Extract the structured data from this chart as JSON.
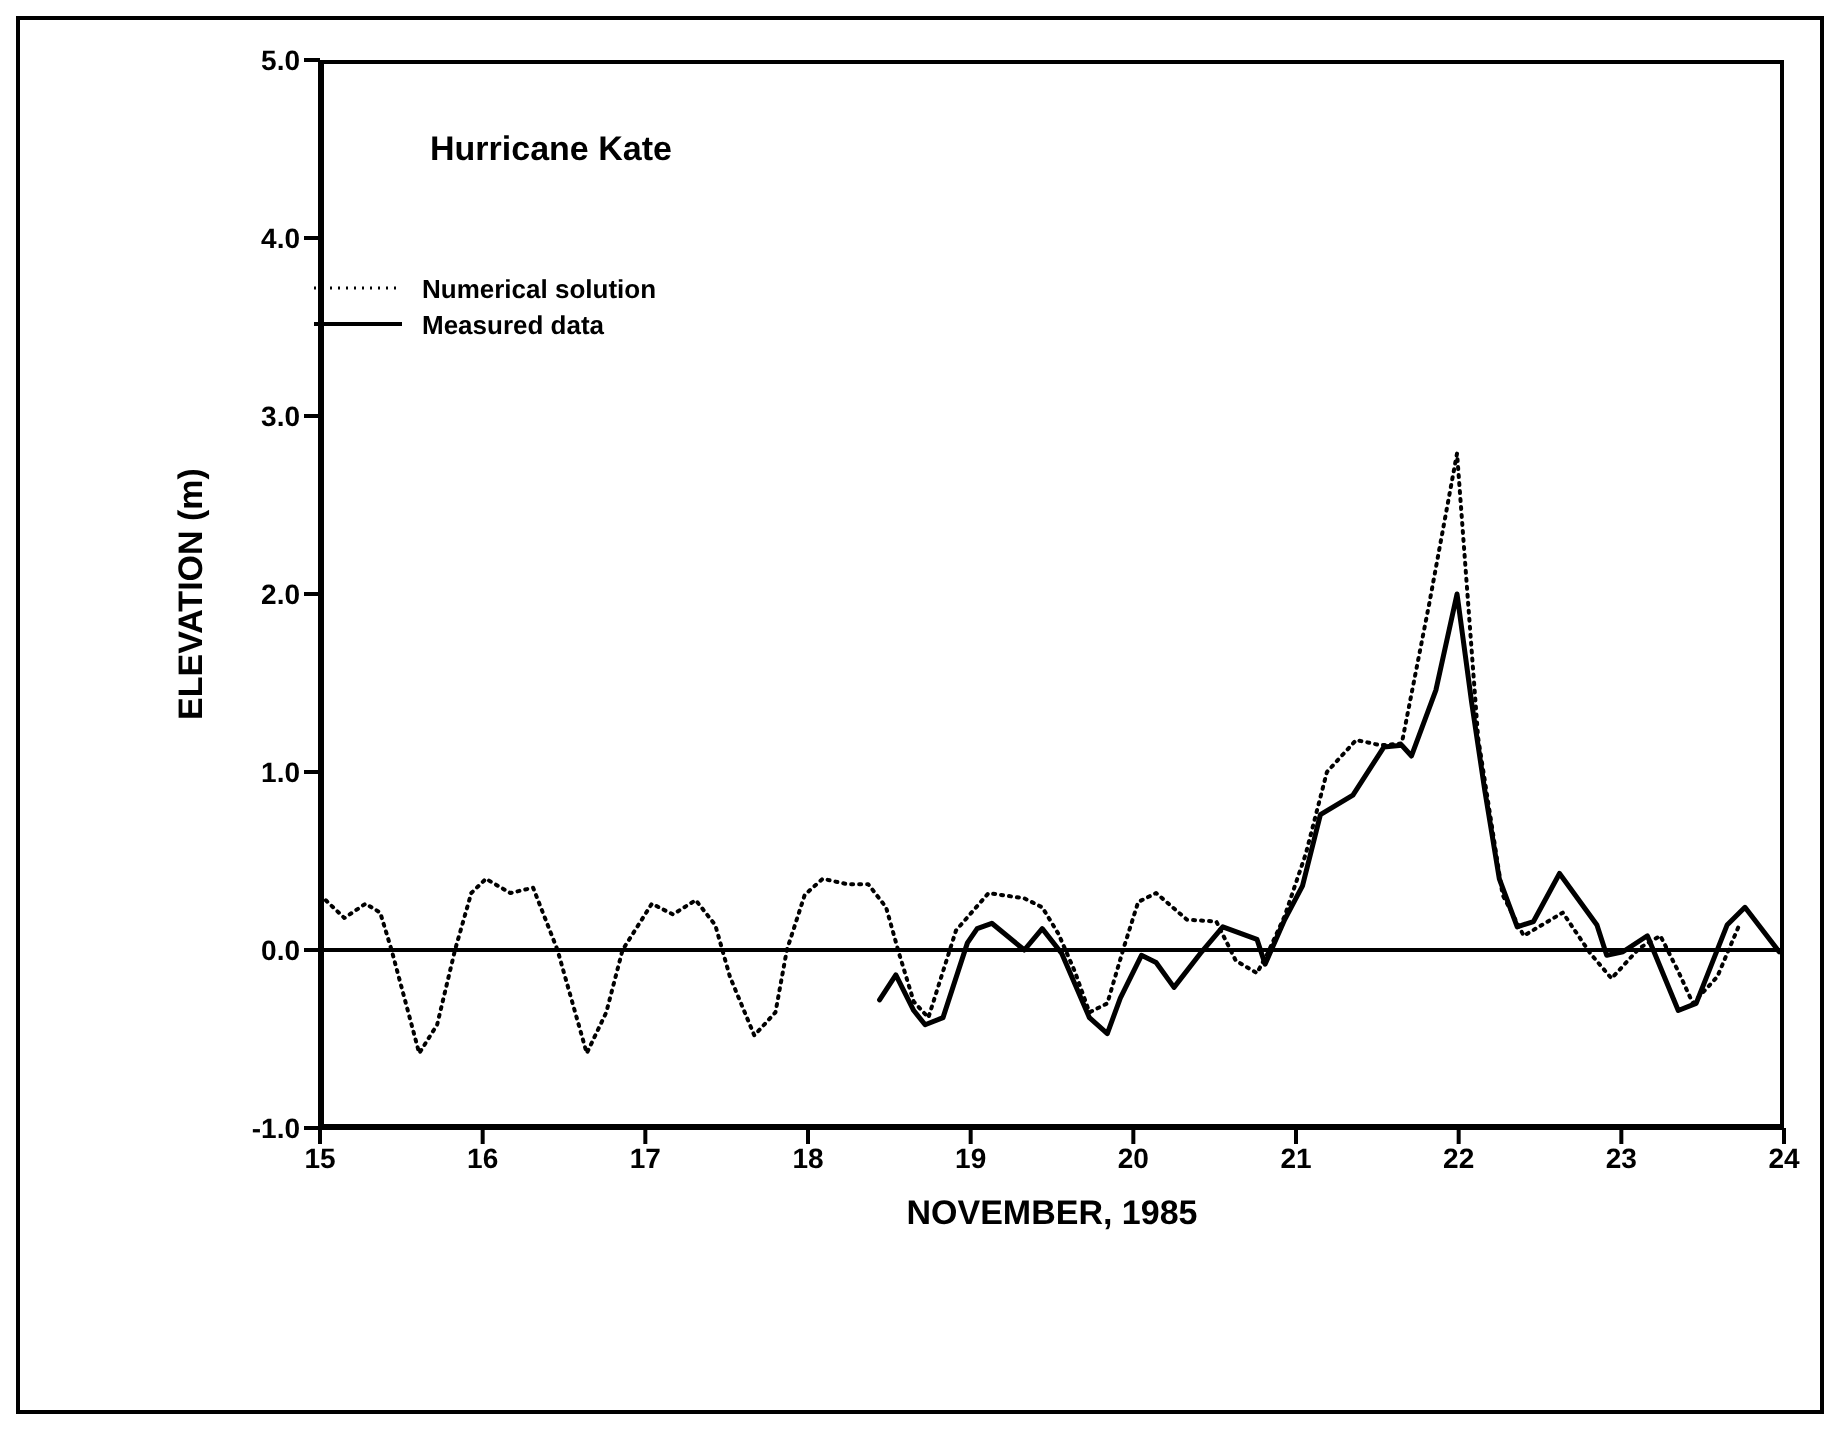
{
  "chart_data": {
    "type": "line",
    "title": "Hurricane Kate",
    "xlabel": "NOVEMBER, 1985",
    "ylabel": "ELEVATION (m)",
    "xlim": [
      15,
      24
    ],
    "xticks": [
      15,
      16,
      17,
      18,
      19,
      20,
      21,
      22,
      23,
      24
    ],
    "ylim": [
      -1,
      5
    ],
    "yticks": [
      {
        "value": -1,
        "label": "-1.0"
      },
      {
        "value": 0,
        "label": "0.0"
      },
      {
        "value": 1,
        "label": "1.0"
      },
      {
        "value": 2,
        "label": "2.0"
      },
      {
        "value": 3,
        "label": "3.0"
      },
      {
        "value": 4,
        "label": "4.0"
      },
      {
        "value": 5,
        "label": "5.0"
      }
    ],
    "legend": "top left",
    "ref_lines": [
      {
        "axis": "y",
        "value": 0,
        "color": "#000000"
      }
    ],
    "series": [
      {
        "name": "Numerical solution",
        "color": "#000000",
        "line_style": "dotted",
        "x": [
          15.0,
          15.15,
          15.28,
          15.37,
          15.44,
          15.61,
          15.72,
          15.83,
          15.93,
          16.02,
          16.17,
          16.31,
          16.46,
          16.64,
          16.76,
          16.86,
          17.04,
          17.17,
          17.31,
          17.43,
          17.52,
          17.67,
          17.8,
          17.87,
          17.98,
          18.09,
          18.24,
          18.37,
          18.48,
          18.56,
          18.65,
          18.74,
          18.83,
          18.91,
          19.11,
          19.33,
          19.44,
          19.54,
          19.64,
          19.73,
          19.84,
          19.94,
          20.03,
          20.14,
          20.33,
          20.51,
          20.63,
          20.76,
          20.83,
          20.93,
          21.06,
          21.19,
          21.37,
          21.52,
          21.65,
          21.82,
          21.99,
          22.05,
          22.12,
          22.27,
          22.4,
          22.64,
          22.81,
          22.94,
          23.11,
          23.24,
          23.35,
          23.44,
          23.59,
          23.72
        ],
        "values": [
          0.31,
          0.18,
          0.26,
          0.21,
          0,
          -0.58,
          -0.42,
          0,
          0.32,
          0.4,
          0.32,
          0.35,
          0,
          -0.58,
          -0.35,
          0,
          0.26,
          0.2,
          0.28,
          0.14,
          -0.15,
          -0.48,
          -0.35,
          0,
          0.31,
          0.4,
          0.37,
          0.37,
          0.24,
          -0.02,
          -0.29,
          -0.38,
          -0.12,
          0.11,
          0.32,
          0.29,
          0.24,
          0.09,
          -0.12,
          -0.35,
          -0.3,
          0.01,
          0.27,
          0.32,
          0.17,
          0.16,
          -0.06,
          -0.13,
          -0.01,
          0.19,
          0.54,
          1.0,
          1.18,
          1.15,
          1.16,
          1.95,
          2.79,
          2.05,
          1.19,
          0.31,
          0.08,
          0.21,
          -0.02,
          -0.16,
          0.01,
          0.08,
          -0.12,
          -0.3,
          -0.15,
          0.13
        ]
      },
      {
        "name": "Measured data",
        "color": "#000000",
        "line_style": "solid",
        "x": [
          18.44,
          18.54,
          18.65,
          18.72,
          18.83,
          18.98,
          19.04,
          19.13,
          19.33,
          19.44,
          19.56,
          19.73,
          19.84,
          19.92,
          20.05,
          20.14,
          20.25,
          20.42,
          20.55,
          20.76,
          20.81,
          20.93,
          21.04,
          21.15,
          21.35,
          21.54,
          21.65,
          21.71,
          21.86,
          21.99,
          22.08,
          22.16,
          22.25,
          22.36,
          22.46,
          22.62,
          22.85,
          22.91,
          23.01,
          23.16,
          23.35,
          23.46,
          23.65,
          23.76,
          23.97
        ],
        "values": [
          -0.28,
          -0.14,
          -0.34,
          -0.42,
          -0.38,
          0.04,
          0.12,
          0.15,
          0,
          0.12,
          -0.02,
          -0.38,
          -0.47,
          -0.27,
          -0.03,
          -0.07,
          -0.21,
          -0.01,
          0.13,
          0.06,
          -0.08,
          0.17,
          0.36,
          0.76,
          0.87,
          1.14,
          1.15,
          1.09,
          1.46,
          2.0,
          1.39,
          0.9,
          0.4,
          0.13,
          0.16,
          0.43,
          0.14,
          -0.03,
          -0.01,
          0.08,
          -0.34,
          -0.3,
          0.14,
          0.24,
          -0.01
        ]
      }
    ]
  }
}
